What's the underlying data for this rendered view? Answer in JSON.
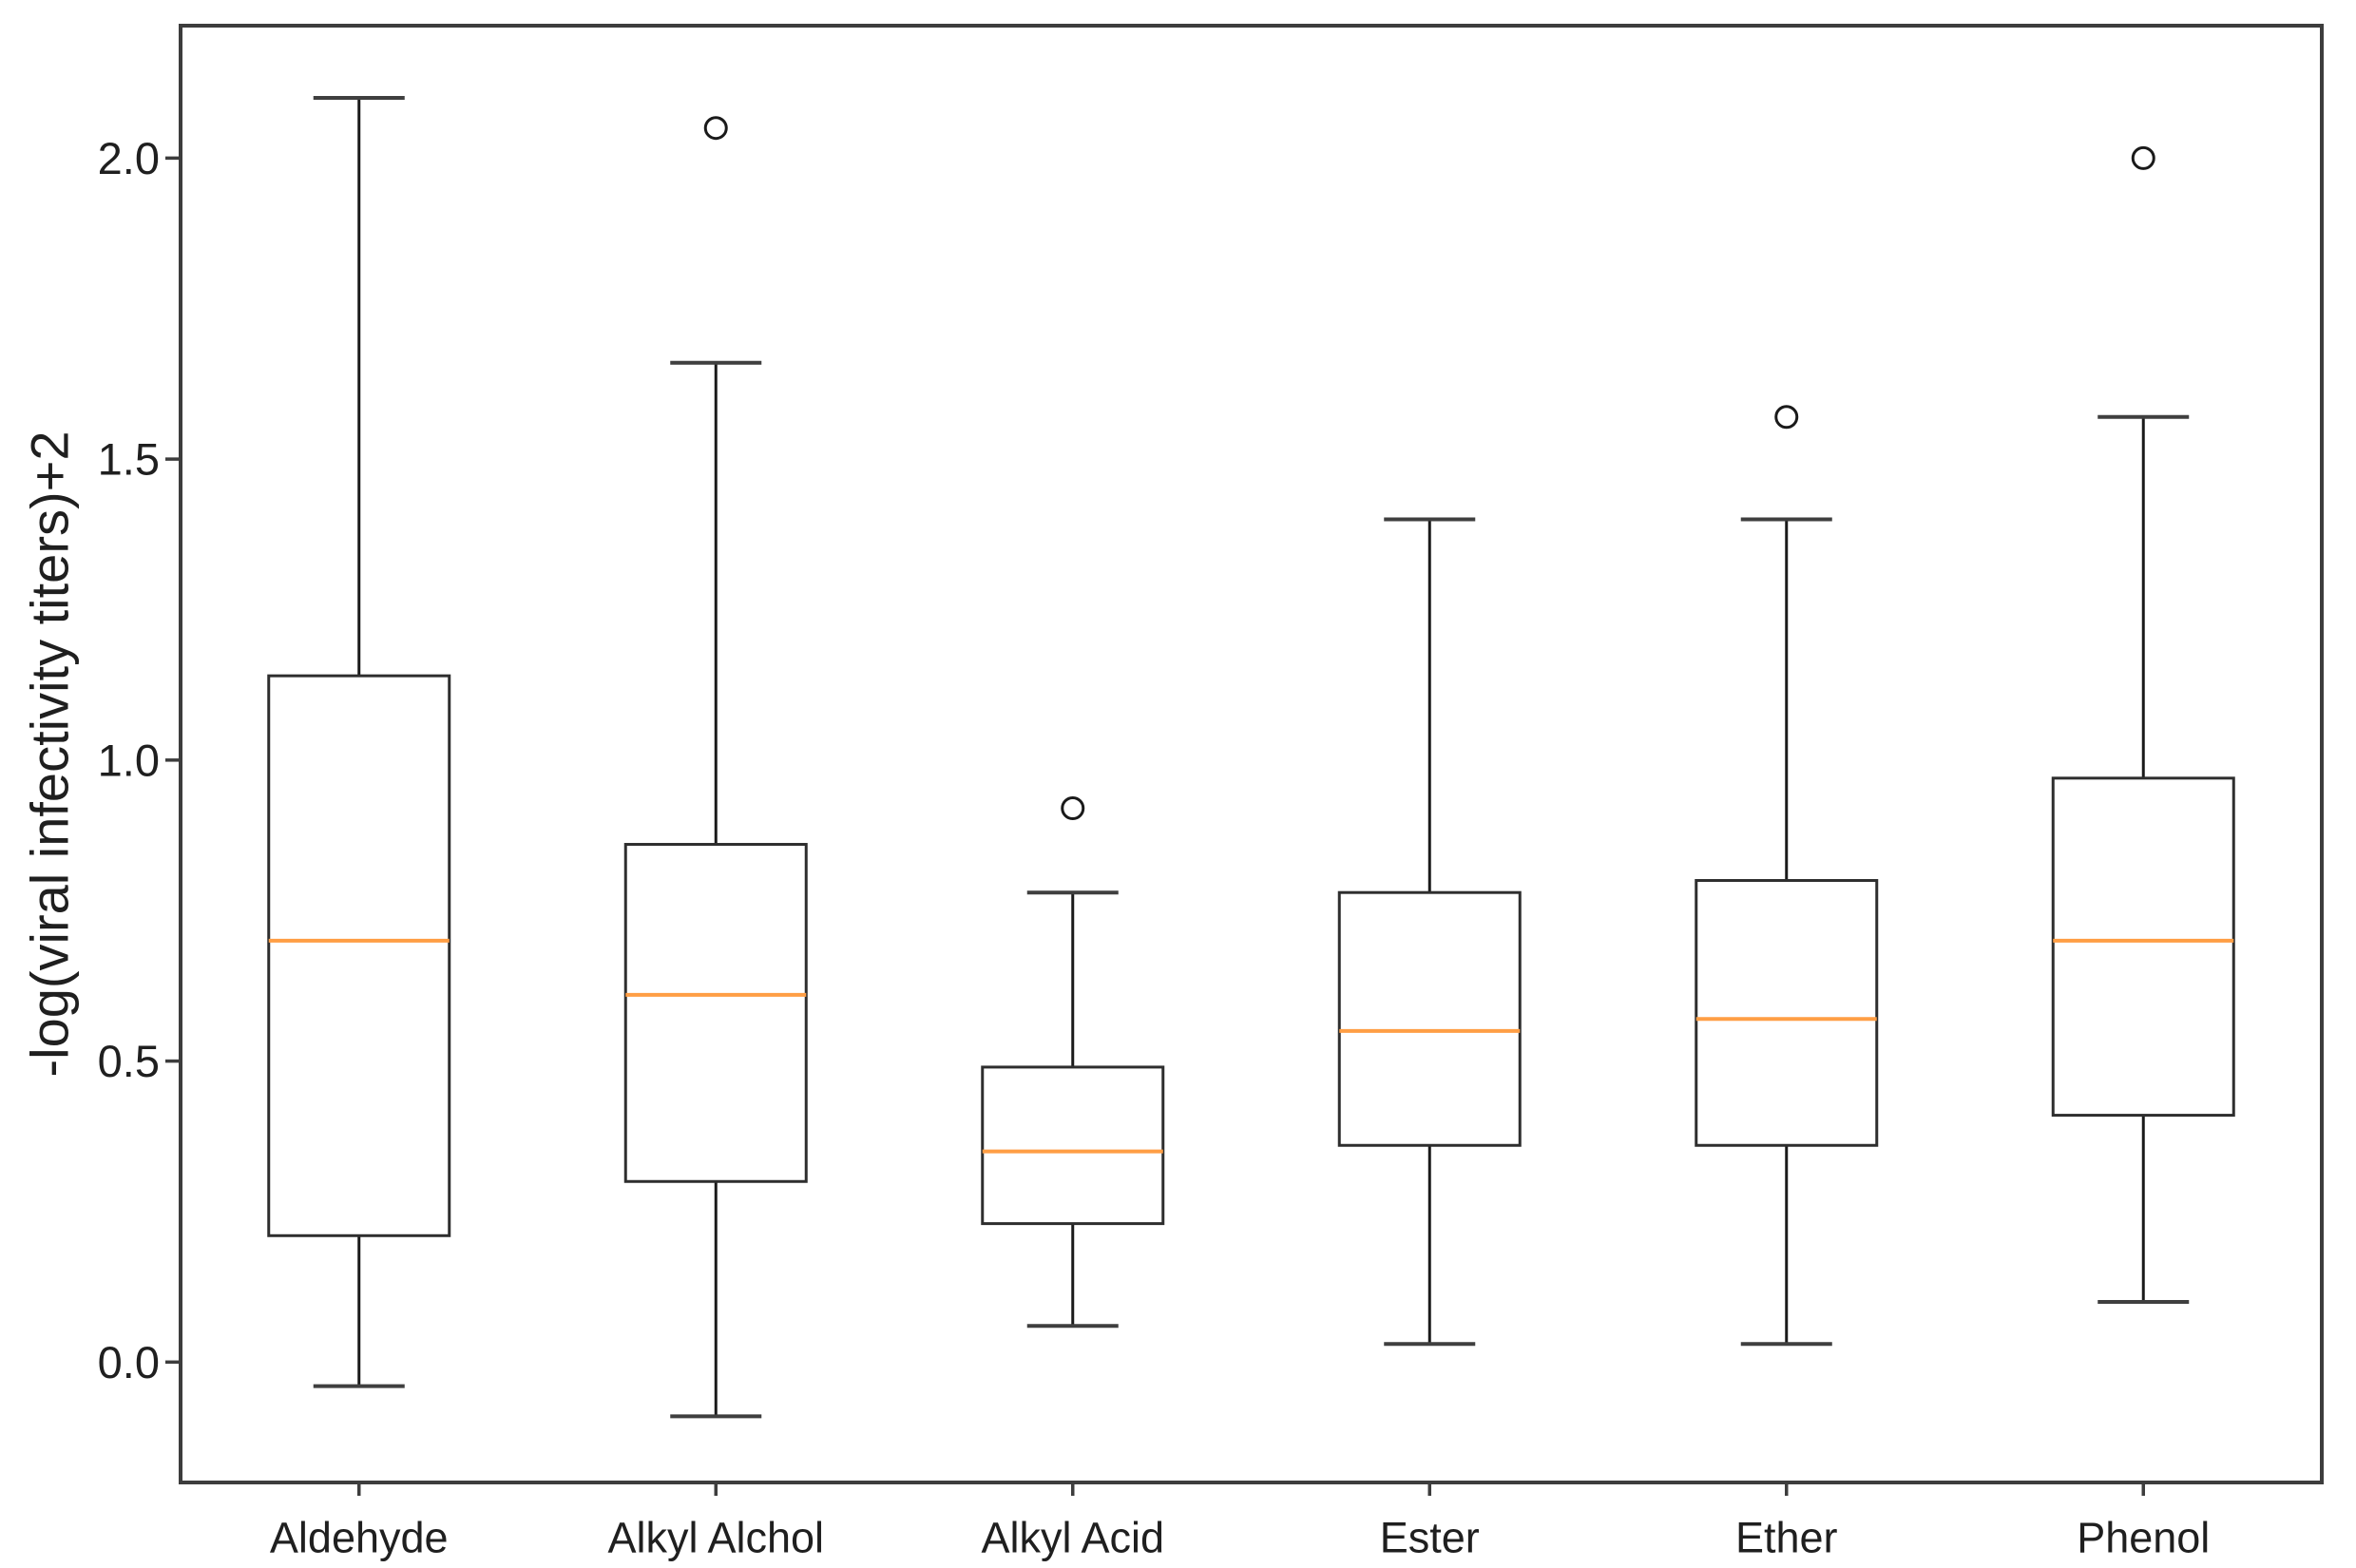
{
  "figure": {
    "description": "Box plot of -log(viral infectivity titers)+2 across six chemical functional groups"
  },
  "chart_data": {
    "type": "box",
    "title": "",
    "xlabel": "",
    "ylabel": "-log(viral infectivity titers)+2",
    "categories": [
      "Aldehyde",
      "Alkyl Alchol",
      "Alkyl Acid",
      "Ester",
      "Ether",
      "Phenol"
    ],
    "yticks": [
      0.0,
      0.5,
      1.0,
      1.5,
      2.0
    ],
    "ytick_labels": [
      "0.0",
      "0.5",
      "1.0",
      "1.5",
      "2.0"
    ],
    "ylim": [
      -0.2,
      2.22
    ],
    "grid": false,
    "legend_position": "none",
    "series": [
      {
        "name": "Aldehyde",
        "whislo": -0.04,
        "q1": 0.21,
        "med": 0.7,
        "q3": 1.14,
        "whishi": 2.1,
        "fliers": []
      },
      {
        "name": "Alkyl Alchol",
        "whislo": -0.09,
        "q1": 0.3,
        "med": 0.61,
        "q3": 0.86,
        "whishi": 1.66,
        "fliers": [
          2.05
        ]
      },
      {
        "name": "Alkyl Acid",
        "whislo": 0.06,
        "q1": 0.23,
        "med": 0.35,
        "q3": 0.49,
        "whishi": 0.78,
        "fliers": [
          0.92
        ]
      },
      {
        "name": "Ester",
        "whislo": 0.03,
        "q1": 0.36,
        "med": 0.55,
        "q3": 0.78,
        "whishi": 1.4,
        "fliers": []
      },
      {
        "name": "Ether",
        "whislo": 0.03,
        "q1": 0.36,
        "med": 0.57,
        "q3": 0.8,
        "whishi": 1.4,
        "fliers": [
          1.57
        ]
      },
      {
        "name": "Phenol",
        "whislo": 0.1,
        "q1": 0.41,
        "med": 0.7,
        "q3": 0.97,
        "whishi": 1.57,
        "fliers": [
          2.0
        ]
      }
    ],
    "style": {
      "background": "#ffffff",
      "spine_color": "#3d3d3d",
      "box_edge_color": "#2e2e2e",
      "box_fill_color": "#ffffff",
      "whisker_color": "#1a1a1a",
      "cap_color": "#3f3f3f",
      "median_color": "#ff9e45",
      "flier_color": "#1a1a1a",
      "text_color": "#1f1f1f"
    }
  }
}
